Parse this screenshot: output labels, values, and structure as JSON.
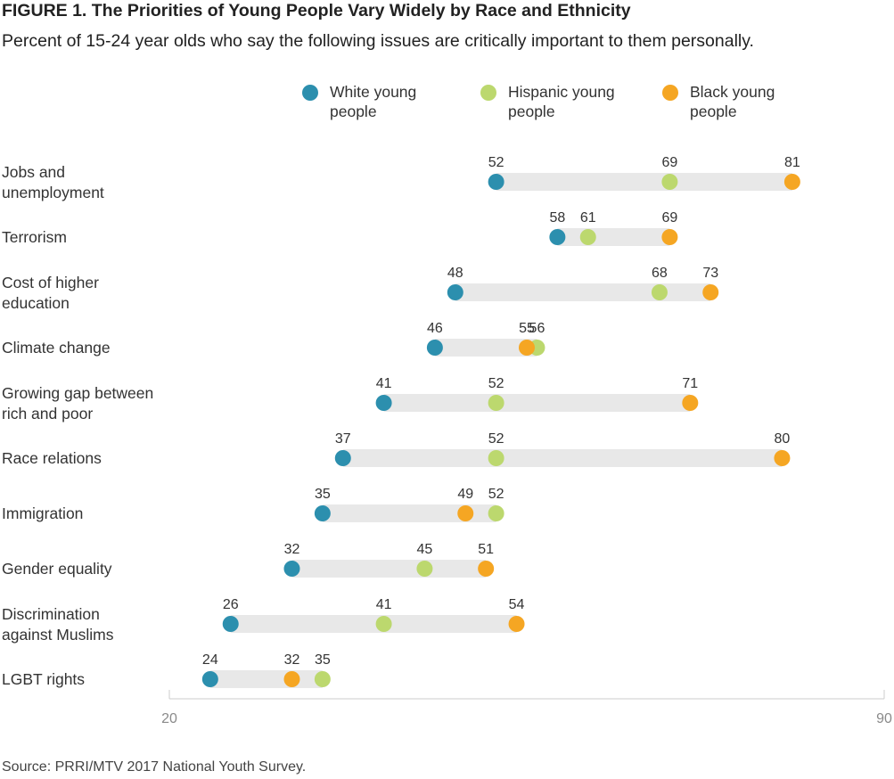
{
  "figure": {
    "title": "FIGURE 1.  The Priorities of Young People Vary Widely by Race and Ethnicity",
    "subtitle": "Percent of 15-24 year olds who say the following issues are critically important to them personally.",
    "source": "Source: PRRI/MTV 2017 National Youth Survey."
  },
  "colors": {
    "white": "#2c8fae",
    "hispanic": "#bcd86e",
    "black": "#f5a623",
    "range_bar": "#e8e8e8",
    "axis": "#cccccc"
  },
  "chart_data": {
    "type": "dot-range",
    "title": "FIGURE 1.  The Priorities of Young People Vary Widely by Race and Ethnicity",
    "subtitle": "Percent of 15-24 year olds who say the following issues are critically important to them personally.",
    "xlim": [
      20,
      90
    ],
    "x_ticks": [
      20,
      90
    ],
    "legend_position": "top",
    "categories": [
      "Jobs and unemployment",
      "Terrorism",
      "Cost of higher education",
      "Climate change",
      "Growing gap between rich and poor",
      "Race relations",
      "Immigration",
      "Gender equality",
      "Discrimination against Muslims",
      "LGBT rights"
    ],
    "category_lines": [
      [
        "Jobs and",
        "unemployment"
      ],
      [
        "Terrorism"
      ],
      [
        "Cost of higher",
        "education"
      ],
      [
        "Climate change"
      ],
      [
        "Growing gap between",
        "rich and poor"
      ],
      [
        "Race relations"
      ],
      [
        "Immigration"
      ],
      [
        "Gender equality"
      ],
      [
        "Discrimination",
        "against Muslims"
      ],
      [
        "LGBT rights"
      ]
    ],
    "series": [
      {
        "key": "white",
        "name": "White young people",
        "values": [
          52,
          58,
          48,
          46,
          41,
          37,
          35,
          32,
          26,
          24
        ]
      },
      {
        "key": "hispanic",
        "name": "Hispanic young people",
        "values": [
          69,
          61,
          68,
          56,
          52,
          52,
          52,
          45,
          41,
          35
        ]
      },
      {
        "key": "black",
        "name": "Black young people",
        "values": [
          81,
          69,
          73,
          55,
          71,
          80,
          49,
          51,
          54,
          32
        ]
      }
    ]
  },
  "legend": [
    {
      "key": "white",
      "lines": [
        "White young",
        "people"
      ]
    },
    {
      "key": "hispanic",
      "lines": [
        "Hispanic young",
        "people"
      ]
    },
    {
      "key": "black",
      "lines": [
        "Black young",
        "people"
      ]
    }
  ]
}
